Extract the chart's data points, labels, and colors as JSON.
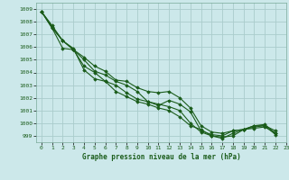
{
  "title": "Graphe pression niveau de la mer (hPa)",
  "background_color": "#cce8ea",
  "grid_color": "#aacccc",
  "line_color": "#1a5c1a",
  "marker_color": "#1a5c1a",
  "xlim": [
    -0.5,
    23
  ],
  "ylim": [
    998.5,
    1009.5
  ],
  "yticks": [
    999,
    1000,
    1001,
    1002,
    1003,
    1004,
    1005,
    1006,
    1007,
    1008,
    1009
  ],
  "xticks": [
    0,
    1,
    2,
    3,
    4,
    5,
    6,
    7,
    8,
    9,
    10,
    11,
    12,
    13,
    14,
    15,
    16,
    17,
    18,
    19,
    20,
    21,
    22,
    23
  ],
  "series": [
    [
      1008.8,
      1007.6,
      1006.5,
      1005.8,
      1005.0,
      1004.1,
      1003.8,
      1003.3,
      1003.0,
      1002.5,
      1001.7,
      1001.4,
      1001.8,
      1001.5,
      1000.9,
      999.4,
      999.1,
      999.0,
      999.4,
      999.5,
      999.6,
      999.7,
      999.2
    ],
    [
      1008.8,
      1007.7,
      1006.5,
      1005.8,
      1005.2,
      1004.5,
      1004.1,
      1003.4,
      1003.3,
      1002.8,
      1002.5,
      1002.4,
      1002.5,
      1002.0,
      1001.2,
      999.8,
      999.3,
      999.2,
      999.4,
      999.5,
      999.7,
      999.8,
      999.4
    ],
    [
      1008.8,
      1007.5,
      1006.5,
      1005.9,
      1004.2,
      1003.5,
      1003.3,
      1003.0,
      1002.4,
      1001.9,
      1001.7,
      1001.5,
      1001.3,
      1001.0,
      1000.0,
      999.3,
      999.0,
      998.9,
      999.0,
      999.5,
      999.8,
      999.9,
      999.2
    ],
    [
      1008.8,
      1007.5,
      1005.9,
      1005.8,
      1004.5,
      1004.0,
      1003.3,
      1002.5,
      1002.1,
      1001.7,
      1001.5,
      1001.2,
      1001.0,
      1000.5,
      999.8,
      999.5,
      999.0,
      998.8,
      999.2,
      999.5,
      999.8,
      999.8,
      999.1
    ]
  ]
}
